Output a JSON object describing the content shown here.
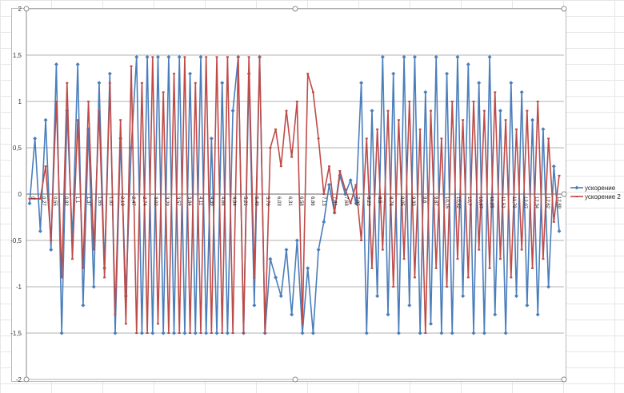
{
  "chart_data": {
    "type": "line",
    "title": "",
    "xlabel": "",
    "ylabel": "",
    "ylim": [
      -2,
      2
    ],
    "y_ticks": [
      "-2",
      "-1,5",
      "-1",
      "-0,5",
      "0",
      "0,5",
      "1",
      "1,5",
      "2"
    ],
    "grid": true,
    "legend_position": "right",
    "x_range": [
      0,
      12.89
    ],
    "x_tick_labels": [
      "0",
      "0,27",
      "0,55",
      "0,82",
      "1,1",
      "1,37",
      "1,65",
      "1,92",
      "2,19",
      "2,47",
      "2,74",
      "3,02",
      "3,29",
      "3,57",
      "3,84",
      "4,11",
      "4,39",
      "4,66",
      "4,94",
      "5,21",
      "5,49",
      "5,76",
      "6,03",
      "6,31",
      "6,58",
      "6,86",
      "7,13",
      "7,41",
      "7,68",
      "7,95",
      "8,23",
      "8,5",
      "8,78",
      "9,05",
      "9,33",
      "9,6",
      "9,87",
      "10,15",
      "10,42",
      "10,7",
      "10,97",
      "11,25",
      "11,52",
      "11,79",
      "12,07",
      "12,34",
      "12,62",
      "12,89"
    ],
    "series": [
      {
        "name": "ускорение",
        "color": "#4a7ebb",
        "marker": "diamond",
        "values": [
          -0.1,
          0.6,
          -0.4,
          0.8,
          -0.6,
          1.4,
          -1.5,
          0.9,
          -0.5,
          1.4,
          -1.2,
          0.7,
          -1.0,
          1.2,
          -0.8,
          1.3,
          -1.5,
          0.6,
          -1.1,
          0.5,
          1.48,
          -1.5,
          1.48,
          -1.5,
          1.48,
          -1.5,
          1.48,
          -1.5,
          1.48,
          -1.5,
          1.3,
          -1.5,
          1.48,
          -1.5,
          0.6,
          -1.5,
          1.2,
          -1.5,
          0.9,
          1.48,
          -1.5,
          1.3,
          -1.2,
          1.48,
          -1.5,
          -0.7,
          -0.9,
          -1.1,
          -0.6,
          -1.3,
          -0.5,
          -1.5,
          -0.8,
          -1.5,
          -0.6,
          -0.3,
          0.1,
          -0.2,
          0.2,
          0.0,
          0.15,
          -0.1,
          1.2,
          -1.5,
          0.9,
          -1.1,
          1.48,
          -1.3,
          1.3,
          -1.5,
          1.48,
          -1.2,
          1.48,
          -1.5,
          1.1,
          -1.4,
          1.48,
          -1.5,
          1.3,
          -1.5,
          1.48,
          -1.1,
          1.4,
          -1.5,
          1.2,
          -1.5,
          1.48,
          -1.3,
          0.9,
          -1.5,
          1.2,
          -1.1,
          1.1,
          -1.2,
          0.8,
          -1.3,
          0.7,
          -1.0,
          0.3,
          -0.4
        ]
      },
      {
        "name": "ускорение 2",
        "color": "#be4b48",
        "marker": "dash",
        "values": [
          -0.05,
          -0.05,
          -0.05,
          0.3,
          -0.5,
          1.0,
          -0.9,
          1.2,
          -0.7,
          0.8,
          -0.8,
          1.0,
          -0.6,
          0.9,
          -0.9,
          1.2,
          -1.3,
          0.8,
          -1.4,
          1.38,
          -1.5,
          1.2,
          -1.5,
          1.48,
          -1.4,
          1.1,
          -1.5,
          1.3,
          -1.5,
          1.48,
          -1.5,
          1.2,
          -1.5,
          1.48,
          -1.5,
          1.48,
          -1.5,
          1.48,
          -1.5,
          1.48,
          -1.5,
          1.48,
          -0.9,
          1.48,
          -1.5,
          0.5,
          0.7,
          0.3,
          0.9,
          0.4,
          1.0,
          -1.4,
          1.3,
          1.1,
          0.6,
          0.0,
          0.3,
          -0.2,
          0.25,
          0.05,
          -0.1,
          0.1,
          -0.5,
          0.6,
          -0.8,
          0.7,
          -0.6,
          0.9,
          -1.0,
          0.8,
          -0.7,
          1.0,
          -0.9,
          0.7,
          -1.5,
          0.9,
          -0.8,
          0.6,
          -1.0,
          1.0,
          -0.7,
          0.8,
          -0.9,
          1.0,
          -0.6,
          0.9,
          -0.8,
          1.1,
          -0.7,
          0.8,
          -0.9,
          0.7,
          -0.6,
          0.9,
          -0.8,
          1.0,
          -0.7,
          0.6,
          -0.3,
          0.2
        ]
      }
    ]
  }
}
